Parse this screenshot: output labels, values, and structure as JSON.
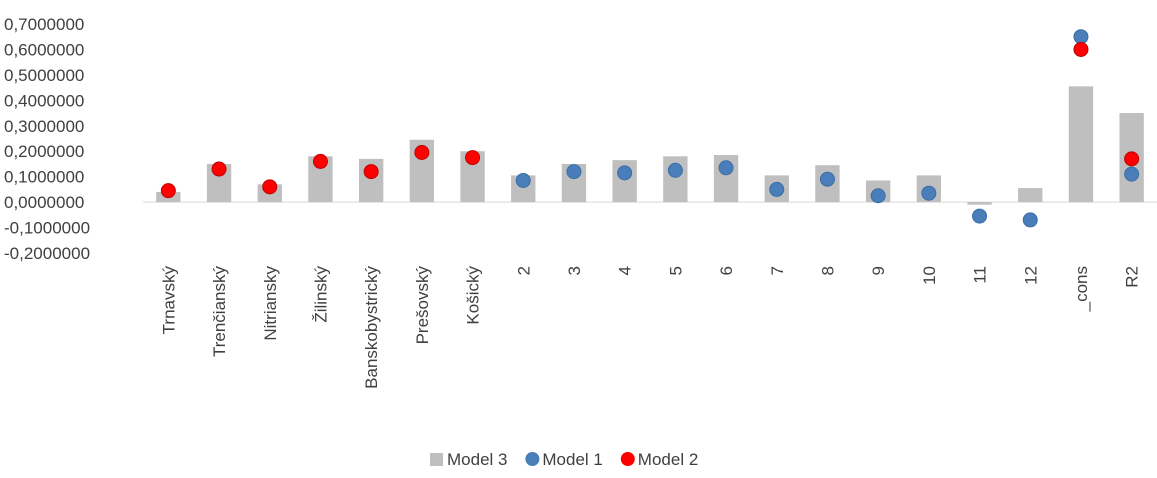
{
  "chart_data": {
    "type": "bar",
    "title": "",
    "xlabel": "",
    "ylabel": "",
    "ylim": [
      -0.2,
      0.7
    ],
    "y_tick_step": 0.1,
    "y_tick_labels": [
      "0,7000000",
      "0,6000000",
      "0,5000000",
      "0,4000000",
      "0,3000000",
      "0,2000000",
      "0,1000000",
      "0,0000000",
      "-0,1000000",
      "-0,2000000"
    ],
    "grid": false,
    "legend_position": "bottom",
    "categories": [
      "Trnavský",
      "Trenčianský",
      "Nitriansky",
      "Žilinský",
      "Banskobystrický",
      "Prešovský",
      "Košický",
      "2",
      "3",
      "4",
      "5",
      "6",
      "7",
      "8",
      "9",
      "10",
      "11",
      "12",
      "_cons",
      "R2"
    ],
    "series": [
      {
        "name": "Model 3",
        "kind": "bar",
        "color": "#bfbfbf",
        "values": [
          0.04,
          0.15,
          0.07,
          0.18,
          0.17,
          0.245,
          0.2,
          0.105,
          0.15,
          0.165,
          0.18,
          0.185,
          0.105,
          0.145,
          0.085,
          0.105,
          -0.01,
          0.055,
          0.455,
          0.35
        ]
      },
      {
        "name": "Model 1",
        "kind": "scatter",
        "color": "#4a7ebb",
        "values": [
          null,
          null,
          null,
          null,
          null,
          null,
          null,
          0.085,
          0.12,
          0.115,
          0.125,
          0.135,
          0.05,
          0.09,
          0.025,
          0.035,
          -0.055,
          -0.07,
          0.65,
          0.11
        ]
      },
      {
        "name": "Model 2",
        "kind": "scatter",
        "color": "#ff0000",
        "values": [
          0.045,
          0.13,
          0.06,
          0.16,
          0.12,
          0.195,
          0.175,
          null,
          null,
          null,
          null,
          null,
          null,
          null,
          null,
          null,
          null,
          null,
          0.6,
          0.17
        ]
      }
    ]
  }
}
